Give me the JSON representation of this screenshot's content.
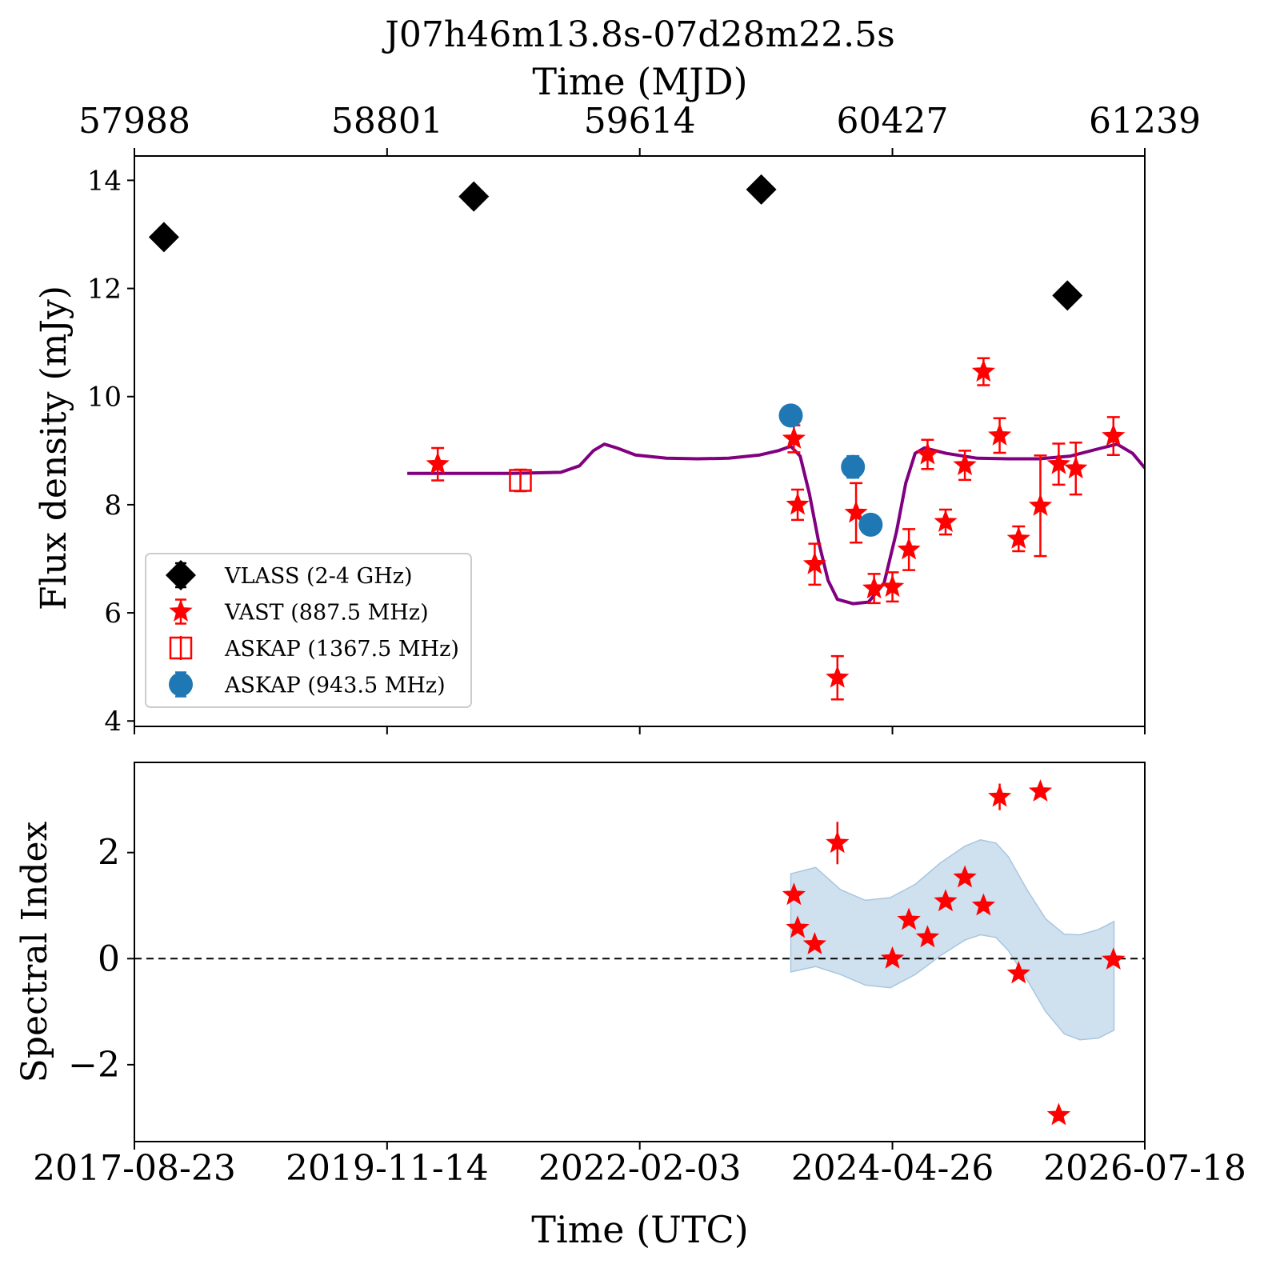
{
  "chart_data": [
    {
      "type": "scatter",
      "panel": "flux",
      "title": "J07h46m13.8s-07d28m22.5s",
      "top_axis_label": "Time (MJD)",
      "top_ticks": [
        57988,
        58801,
        59614,
        60427,
        61239
      ],
      "ylabel": "Flux density (mJy)",
      "x_range_mjd": [
        57988,
        61239
      ],
      "ylim": [
        3.9,
        14.45
      ],
      "yticks": [
        4,
        6,
        8,
        10,
        12,
        14
      ],
      "grid": false,
      "legend_position": "lower-left",
      "series": [
        {
          "name": "VLASS (2-4 GHz)",
          "color": "#000000",
          "marker": "diamond",
          "points": [
            {
              "mjd": 58083,
              "y": 12.95,
              "err": 0.08
            },
            {
              "mjd": 59080,
              "y": 13.7,
              "err": 0.08
            },
            {
              "mjd": 60005,
              "y": 13.83,
              "err": 0.08
            },
            {
              "mjd": 60990,
              "y": 11.87,
              "err": 0.08
            }
          ]
        },
        {
          "name": "VAST (887.5 MHz)",
          "color": "#ff0000",
          "marker": "star",
          "points": [
            {
              "mjd": 58964,
              "y": 8.75,
              "err": 0.3
            },
            {
              "mjd": 60110,
              "y": 9.22,
              "err": 0.25
            },
            {
              "mjd": 60122,
              "y": 8.0,
              "err": 0.28
            },
            {
              "mjd": 60177,
              "y": 6.9,
              "err": 0.38
            },
            {
              "mjd": 60250,
              "y": 4.8,
              "err": 0.4
            },
            {
              "mjd": 60310,
              "y": 7.85,
              "err": 0.55
            },
            {
              "mjd": 60368,
              "y": 6.45,
              "err": 0.27
            },
            {
              "mjd": 60427,
              "y": 6.48,
              "err": 0.27
            },
            {
              "mjd": 60480,
              "y": 7.17,
              "err": 0.38
            },
            {
              "mjd": 60540,
              "y": 8.93,
              "err": 0.27
            },
            {
              "mjd": 60598,
              "y": 7.68,
              "err": 0.23
            },
            {
              "mjd": 60660,
              "y": 8.73,
              "err": 0.27
            },
            {
              "mjd": 60720,
              "y": 10.46,
              "err": 0.25
            },
            {
              "mjd": 60772,
              "y": 9.28,
              "err": 0.32
            },
            {
              "mjd": 60833,
              "y": 7.37,
              "err": 0.23
            },
            {
              "mjd": 60903,
              "y": 7.98,
              "err": 0.93
            },
            {
              "mjd": 60962,
              "y": 8.75,
              "err": 0.38
            },
            {
              "mjd": 61017,
              "y": 8.67,
              "err": 0.48
            },
            {
              "mjd": 61138,
              "y": 9.27,
              "err": 0.35
            }
          ]
        },
        {
          "name": "ASKAP (1367.5 MHz)",
          "color": "#ff0000",
          "marker": "open-square",
          "points": [
            {
              "mjd": 59230,
              "y": 8.45,
              "err": 0.2
            }
          ]
        },
        {
          "name": "ASKAP (943.5 MHz)",
          "color": "#1f77b4",
          "marker": "circle",
          "points": [
            {
              "mjd": 60100,
              "y": 9.65,
              "err": 0.1
            },
            {
              "mjd": 60300,
              "y": 8.7,
              "err": 0.2
            },
            {
              "mjd": 60357,
              "y": 7.63,
              "err": 0.08
            }
          ]
        }
      ],
      "model_curve": {
        "color": "#800080",
        "points": [
          {
            "mjd": 58866,
            "y": 8.58
          },
          {
            "mjd": 59200,
            "y": 8.58
          },
          {
            "mjd": 59360,
            "y": 8.6
          },
          {
            "mjd": 59420,
            "y": 8.72
          },
          {
            "mjd": 59465,
            "y": 9.0
          },
          {
            "mjd": 59500,
            "y": 9.12
          },
          {
            "mjd": 59540,
            "y": 9.05
          },
          {
            "mjd": 59600,
            "y": 8.92
          },
          {
            "mjd": 59700,
            "y": 8.86
          },
          {
            "mjd": 59800,
            "y": 8.85
          },
          {
            "mjd": 59900,
            "y": 8.86
          },
          {
            "mjd": 60000,
            "y": 8.92
          },
          {
            "mjd": 60060,
            "y": 9.0
          },
          {
            "mjd": 60100,
            "y": 9.08
          },
          {
            "mjd": 60130,
            "y": 8.9
          },
          {
            "mjd": 60160,
            "y": 8.2
          },
          {
            "mjd": 60190,
            "y": 7.3
          },
          {
            "mjd": 60220,
            "y": 6.6
          },
          {
            "mjd": 60250,
            "y": 6.25
          },
          {
            "mjd": 60300,
            "y": 6.17
          },
          {
            "mjd": 60350,
            "y": 6.2
          },
          {
            "mjd": 60400,
            "y": 6.55
          },
          {
            "mjd": 60440,
            "y": 7.5
          },
          {
            "mjd": 60470,
            "y": 8.4
          },
          {
            "mjd": 60500,
            "y": 8.95
          },
          {
            "mjd": 60530,
            "y": 9.05
          },
          {
            "mjd": 60600,
            "y": 8.95
          },
          {
            "mjd": 60700,
            "y": 8.86
          },
          {
            "mjd": 60800,
            "y": 8.85
          },
          {
            "mjd": 60900,
            "y": 8.85
          },
          {
            "mjd": 61000,
            "y": 8.9
          },
          {
            "mjd": 61080,
            "y": 9.02
          },
          {
            "mjd": 61150,
            "y": 9.12
          },
          {
            "mjd": 61200,
            "y": 8.95
          },
          {
            "mjd": 61239,
            "y": 8.68
          }
        ]
      }
    },
    {
      "type": "scatter",
      "panel": "spectral-index",
      "ylabel": "Spectral Index",
      "xlabel": "Time (UTC)",
      "x_range_mjd": [
        57988,
        61239
      ],
      "xtick_labels": [
        {
          "mjd": 57988,
          "label": "2017-08-23"
        },
        {
          "mjd": 58801,
          "label": "2019-11-14"
        },
        {
          "mjd": 59614,
          "label": "2022-02-03"
        },
        {
          "mjd": 60427,
          "label": "2024-04-26"
        },
        {
          "mjd": 61239,
          "label": "2026-07-18"
        }
      ],
      "ylim": [
        -3.45,
        3.7
      ],
      "yticks": [
        -2,
        0,
        2
      ],
      "reference_line": 0,
      "band": {
        "color": "#cfe0ef",
        "points": [
          {
            "mjd": 60100,
            "lo": -0.25,
            "hi": 1.6
          },
          {
            "mjd": 60180,
            "lo": -0.15,
            "hi": 1.72
          },
          {
            "mjd": 60260,
            "lo": -0.3,
            "hi": 1.3
          },
          {
            "mjd": 60340,
            "lo": -0.5,
            "hi": 1.1
          },
          {
            "mjd": 60420,
            "lo": -0.55,
            "hi": 1.15
          },
          {
            "mjd": 60500,
            "lo": -0.3,
            "hi": 1.4
          },
          {
            "mjd": 60580,
            "lo": 0.05,
            "hi": 1.8
          },
          {
            "mjd": 60660,
            "lo": 0.35,
            "hi": 2.12
          },
          {
            "mjd": 60710,
            "lo": 0.45,
            "hi": 2.24
          },
          {
            "mjd": 60760,
            "lo": 0.4,
            "hi": 2.18
          },
          {
            "mjd": 60800,
            "lo": 0.15,
            "hi": 1.92
          },
          {
            "mjd": 60860,
            "lo": -0.4,
            "hi": 1.3
          },
          {
            "mjd": 60920,
            "lo": -1.0,
            "hi": 0.75
          },
          {
            "mjd": 60980,
            "lo": -1.42,
            "hi": 0.46
          },
          {
            "mjd": 61030,
            "lo": -1.53,
            "hi": 0.45
          },
          {
            "mjd": 61090,
            "lo": -1.5,
            "hi": 0.55
          },
          {
            "mjd": 61140,
            "lo": -1.35,
            "hi": 0.7
          }
        ]
      },
      "series": [
        {
          "name": "VAST (887.5 MHz)",
          "color": "#ff0000",
          "marker": "star",
          "points": [
            {
              "mjd": 60110,
              "y": 1.2,
              "err": 0.1
            },
            {
              "mjd": 60122,
              "y": 0.58,
              "err": 0.1
            },
            {
              "mjd": 60177,
              "y": 0.27,
              "err": 0.1
            },
            {
              "mjd": 60250,
              "y": 2.18,
              "err": 0.4
            },
            {
              "mjd": 60427,
              "y": 0.0,
              "err": 0.08
            },
            {
              "mjd": 60480,
              "y": 0.73,
              "err": 0.1
            },
            {
              "mjd": 60540,
              "y": 0.4,
              "err": 0.1
            },
            {
              "mjd": 60598,
              "y": 1.08,
              "err": 0.1
            },
            {
              "mjd": 60660,
              "y": 1.53,
              "err": 0.1
            },
            {
              "mjd": 60720,
              "y": 1.0,
              "err": 0.1
            },
            {
              "mjd": 60772,
              "y": 3.05,
              "err": 0.25
            },
            {
              "mjd": 60833,
              "y": -0.28,
              "err": 0.1
            },
            {
              "mjd": 60903,
              "y": 3.15,
              "err": 0.1
            },
            {
              "mjd": 60962,
              "y": -2.95,
              "err": 0.1
            },
            {
              "mjd": 61138,
              "y": -0.02,
              "err": 0.1
            }
          ]
        }
      ]
    }
  ]
}
